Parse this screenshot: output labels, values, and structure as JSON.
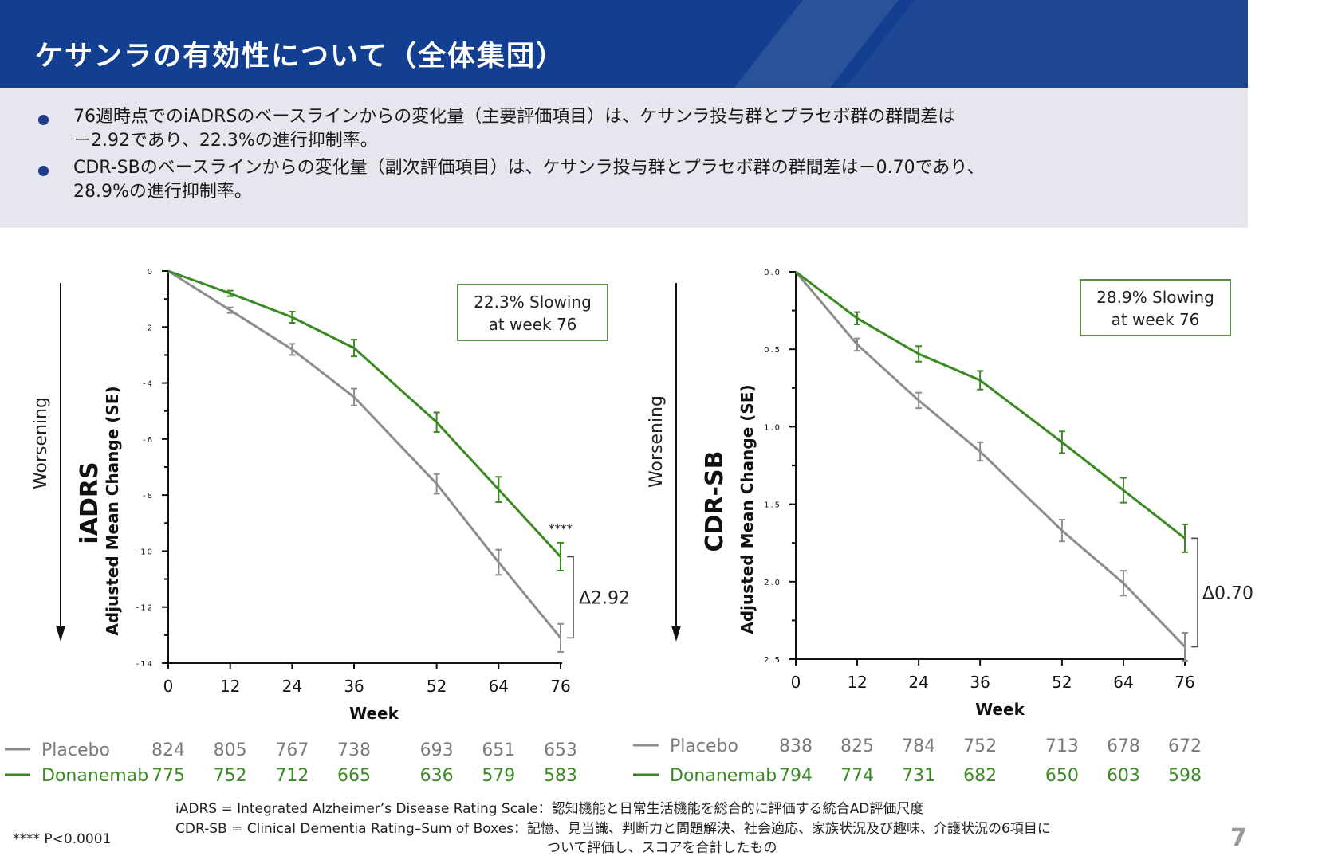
{
  "header": {
    "title": "ケサンラの有効性について（全体集団）"
  },
  "summary": {
    "bullets": [
      {
        "line1": "76週時点でのiADRSのベースラインからの変化量（主要評価項目）は、ケサンラ投与群とプラセボ群の群間差は",
        "line2": "－2.92であり、22.3%の進行抑制率。"
      },
      {
        "line1": "CDR-SBのベースラインからの変化量（副次評価項目）は、ケサンラ投与群とプラセボ群の群間差は－0.70であり、",
        "line2": "28.9%の進行抑制率。"
      }
    ]
  },
  "colors": {
    "placebo": "#8c8c8c",
    "donanemab": "#3a8a22",
    "header_bg": "#123f8f",
    "summary_bg": "#e6e6ee",
    "box_border": "#5e8a4e"
  },
  "chart_data": [
    {
      "type": "line",
      "ylabel_main": "iADRS",
      "ylabel_sub": "Adjusted Mean Change (SE)",
      "direction_label": "Worsening",
      "xlabel": "Week",
      "x": [
        0,
        12,
        24,
        36,
        52,
        64,
        76
      ],
      "ylim": [
        -14,
        0
      ],
      "yticks": [
        0,
        -2,
        -4,
        -6,
        -8,
        -10,
        -12,
        -14
      ],
      "ytick_labels": [
        "0",
        "-2",
        "-4",
        "-6",
        "-8",
        "-10",
        "-12",
        "-14"
      ],
      "series": [
        {
          "name": "Placebo",
          "values": [
            0,
            -1.4,
            -2.8,
            -4.5,
            -7.6,
            -10.4,
            -13.1
          ],
          "se": [
            0,
            0.1,
            0.2,
            0.3,
            0.35,
            0.45,
            0.5
          ],
          "at_risk": [
            824,
            805,
            767,
            738,
            693,
            651,
            653
          ]
        },
        {
          "name": "Donanemab",
          "values": [
            0,
            -0.8,
            -1.65,
            -2.75,
            -5.4,
            -7.8,
            -10.2
          ],
          "se": [
            0,
            0.1,
            0.2,
            0.3,
            0.35,
            0.45,
            0.5
          ],
          "at_risk": [
            775,
            752,
            712,
            665,
            636,
            579,
            583
          ]
        }
      ],
      "annotation": {
        "line1": "22.3% Slowing",
        "line2": "at week 76"
      },
      "delta_label": "Δ2.92",
      "significance": "****"
    },
    {
      "type": "line",
      "ylabel_main": "CDR-SB",
      "ylabel_sub": "Adjusted Mean Change (SE)",
      "direction_label": "Worsening",
      "xlabel": "Week",
      "x": [
        0,
        12,
        24,
        36,
        52,
        64,
        76
      ],
      "ylim": [
        0,
        2.5
      ],
      "yticks": [
        0,
        0.5,
        1.0,
        1.5,
        2.0,
        2.5
      ],
      "ytick_labels": [
        "0.0",
        "0.5",
        "1.0",
        "1.5",
        "2.0",
        "2.5"
      ],
      "series": [
        {
          "name": "Placebo",
          "values": [
            0,
            0.47,
            0.83,
            1.16,
            1.67,
            2.01,
            2.42
          ],
          "se": [
            0,
            0.04,
            0.05,
            0.06,
            0.07,
            0.08,
            0.09
          ],
          "at_risk": [
            838,
            825,
            784,
            752,
            713,
            678,
            672
          ]
        },
        {
          "name": "Donanemab",
          "values": [
            0,
            0.3,
            0.53,
            0.7,
            1.1,
            1.41,
            1.72
          ],
          "se": [
            0,
            0.04,
            0.05,
            0.06,
            0.07,
            0.08,
            0.09
          ],
          "at_risk": [
            794,
            774,
            731,
            682,
            650,
            603,
            598
          ]
        }
      ],
      "annotation": {
        "line1": "28.9% Slowing",
        "line2": "at week 76"
      },
      "delta_label": "Δ0.70"
    }
  ],
  "footer": {
    "pvalue_note": "**** P<0.0001",
    "definition_iadrs": "iADRS = Integrated Alzheimer’s Disease Rating Scale：認知機能と日常生活機能を総合的に評価する統合AD評価尺度",
    "definition_cdrsb_line1": "CDR-SB = Clinical Dementia Rating–Sum of Boxes：記憶、見当識、判断力と問題解決、社会適応、家族状況及び趣味、介護状況の6項目に",
    "definition_cdrsb_line2": "ついて評価し、スコアを合計したもの",
    "slide_number": "7"
  }
}
